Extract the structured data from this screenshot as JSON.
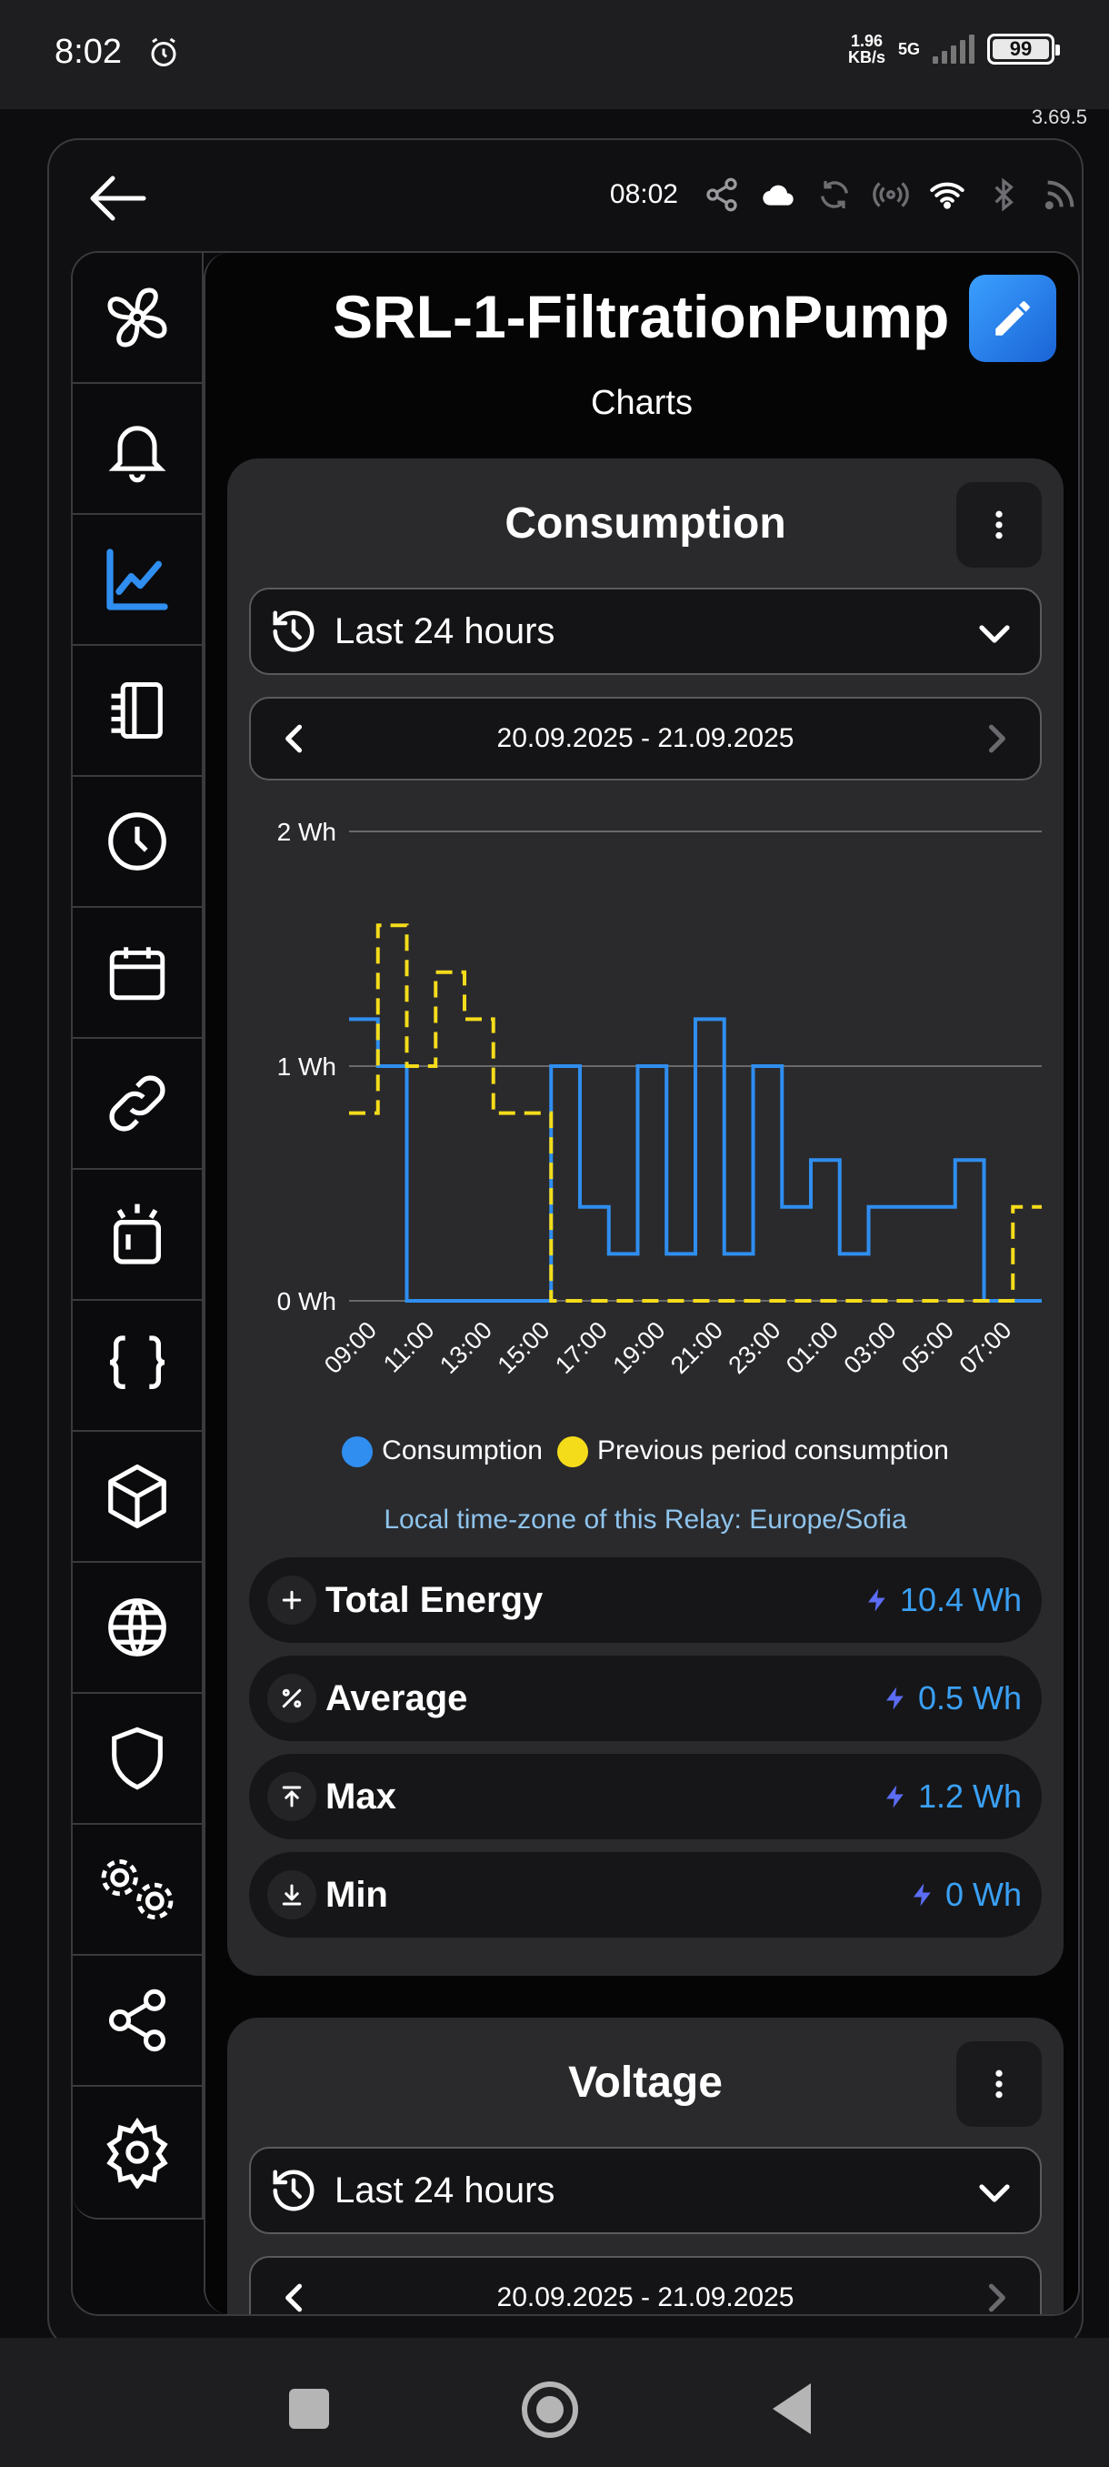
{
  "status_bar": {
    "time": "8:02",
    "speed_value": "1.96",
    "speed_unit": "KB/s",
    "network": "5G",
    "battery": "99"
  },
  "app_version": "3.69.5",
  "topbar": {
    "time": "08:02",
    "icons": [
      "share-icon",
      "cloud-icon",
      "sync-icon",
      "broadcast-icon",
      "wifi-icon",
      "bluetooth-icon",
      "rss-icon"
    ]
  },
  "sidebar": {
    "items": [
      {
        "name": "fan-icon",
        "active": false
      },
      {
        "name": "bell-icon",
        "active": false
      },
      {
        "name": "chart-icon",
        "active": true
      },
      {
        "name": "log-icon",
        "active": false
      },
      {
        "name": "clock-icon",
        "active": false
      },
      {
        "name": "calendar-icon",
        "active": false
      },
      {
        "name": "link-icon",
        "active": false
      },
      {
        "name": "alert-light-icon",
        "active": false
      },
      {
        "name": "braces-icon",
        "active": false
      },
      {
        "name": "cube-icon",
        "active": false
      },
      {
        "name": "globe-icon",
        "active": false
      },
      {
        "name": "shield-icon",
        "active": false
      },
      {
        "name": "gears-icon",
        "active": false
      },
      {
        "name": "share-icon",
        "active": false
      },
      {
        "name": "settings-icon",
        "active": false
      }
    ]
  },
  "page": {
    "title": "SRL-1-FiltrationPump",
    "subtitle": "Charts"
  },
  "consumption_card": {
    "title": "Consumption",
    "period": "Last 24 hours",
    "range": "20.09.2025 - 21.09.2025",
    "legend": [
      "Consumption",
      "Previous period consumption"
    ],
    "timezone": "Local time-zone of this Relay: Europe/Sofia",
    "stats": [
      {
        "label": "Total Energy",
        "value": "10.4 Wh",
        "icon": "plus-icon"
      },
      {
        "label": "Average",
        "value": "0.5 Wh",
        "icon": "percent-icon"
      },
      {
        "label": "Max",
        "value": "1.2 Wh",
        "icon": "arrow-up-to-line-icon"
      },
      {
        "label": "Min",
        "value": "0 Wh",
        "icon": "arrow-down-to-line-icon"
      }
    ]
  },
  "voltage_card": {
    "title": "Voltage",
    "period": "Last 24 hours",
    "range": "20.09.2025 - 21.09.2025"
  },
  "chart_data": {
    "type": "line",
    "step": true,
    "ylim": [
      0,
      2
    ],
    "yticks": [
      "0 Wh",
      "1 Wh",
      "2 Wh"
    ],
    "xticks": [
      "09:00",
      "11:00",
      "13:00",
      "15:00",
      "17:00",
      "19:00",
      "21:00",
      "23:00",
      "01:00",
      "03:00",
      "05:00",
      "07:00"
    ],
    "x": [
      "08:00",
      "09:00",
      "10:00",
      "11:00",
      "12:00",
      "13:00",
      "14:00",
      "15:00",
      "16:00",
      "17:00",
      "18:00",
      "19:00",
      "20:00",
      "21:00",
      "22:00",
      "23:00",
      "00:00",
      "01:00",
      "02:00",
      "03:00",
      "04:00",
      "05:00",
      "06:00",
      "07:00"
    ],
    "series": [
      {
        "name": "Consumption",
        "color": "#2f8ef0",
        "dashed": false,
        "values": [
          1.2,
          1.0,
          0,
          0,
          0,
          0,
          0,
          1.0,
          0.4,
          0.2,
          1.0,
          0.2,
          1.2,
          0.2,
          1.0,
          0.4,
          0.6,
          0.2,
          0.4,
          0.4,
          0.4,
          0.6,
          0,
          0
        ]
      },
      {
        "name": "Previous period consumption",
        "color": "#f5dc1a",
        "dashed": true,
        "values": [
          0.8,
          1.6,
          1.0,
          1.4,
          1.2,
          0.8,
          0.8,
          0,
          0,
          0,
          0,
          0,
          0,
          0,
          0,
          0,
          0,
          0,
          0,
          0,
          0,
          0,
          0,
          0.4
        ]
      }
    ],
    "grid": true,
    "legend_position": "bottom"
  }
}
